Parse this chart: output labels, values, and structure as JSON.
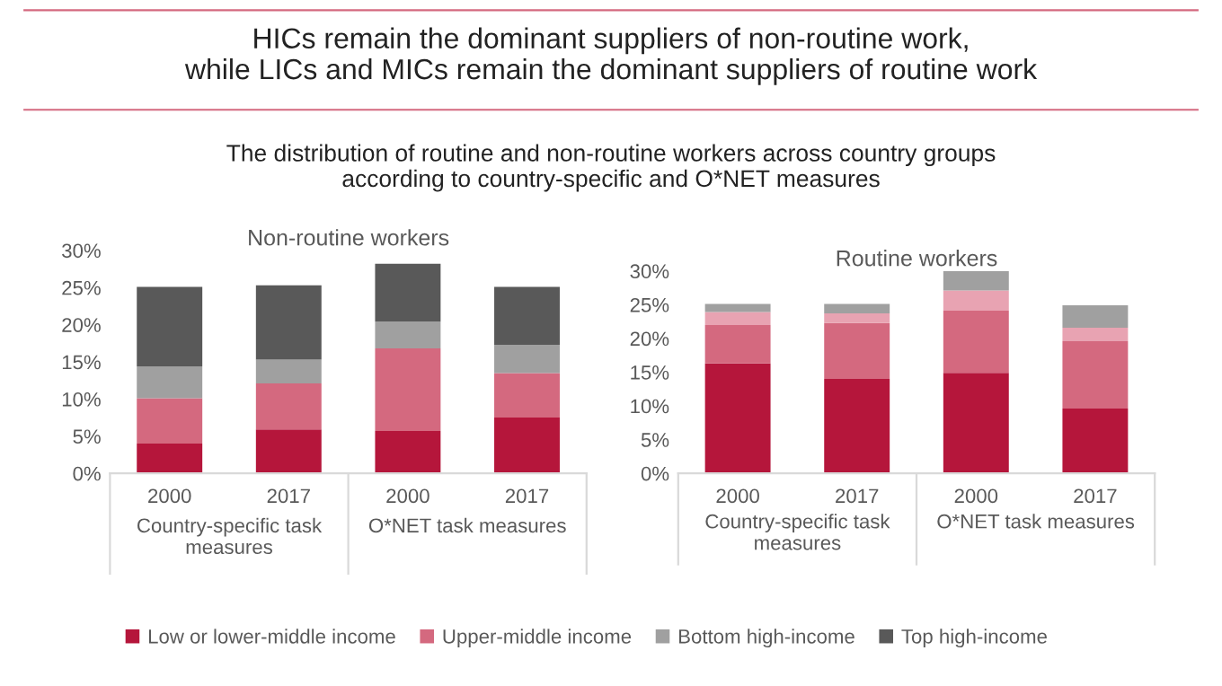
{
  "chart_data": [
    {
      "type": "bar",
      "stacked": true,
      "title": "Non-routine workers",
      "categories": [
        "2000",
        "2017",
        "2000",
        "2017"
      ],
      "ylim": [
        0,
        30
      ],
      "yticks": [
        {
          "value": 0,
          "label": "0%"
        },
        {
          "value": 5,
          "label": "5%"
        },
        {
          "value": 10,
          "label": "10%"
        },
        {
          "value": 15,
          "label": "15%"
        },
        {
          "value": 20,
          "label": "20%"
        },
        {
          "value": 25,
          "label": "25%"
        },
        {
          "value": 30,
          "label": "30%"
        }
      ],
      "grid": false,
      "legend": "bottom",
      "annotations": [
        "HICs remain the dominant suppliers of non-routine work,\nwhile LICs and MICs remain the dominant suppliers of routine work",
        "The distribution of routine and non-routine workers across country groups\naccording to country-specific and O*NET measures",
        "Country-specific task\nmeasures",
        "O*NET task measures"
      ],
      "series": [
        {
          "name": "Low or lower-middle income",
          "color": "#b5163b",
          "values": [
            4.0,
            5.9,
            5.7,
            7.5
          ]
        },
        {
          "name": "Upper-middle income",
          "color": "#d4697f",
          "values": [
            6.1,
            6.2,
            11.1,
            6.0
          ]
        },
        {
          "name": "Bottom high-income",
          "color": "#a0a0a0",
          "values": [
            4.3,
            3.2,
            3.6,
            3.8
          ]
        },
        {
          "name": "Top high-income",
          "color": "#595959",
          "values": [
            10.7,
            10.0,
            7.8,
            7.8
          ]
        }
      ]
    },
    {
      "type": "bar",
      "stacked": true,
      "title": "Routine workers",
      "categories": [
        "2000",
        "2017",
        "2000",
        "2017"
      ],
      "ylim": [
        0,
        30
      ],
      "yticks": [
        {
          "value": 0,
          "label": "0%"
        },
        {
          "value": 5,
          "label": "5%"
        },
        {
          "value": 10,
          "label": "10%"
        },
        {
          "value": 15,
          "label": "15%"
        },
        {
          "value": 20,
          "label": "20%"
        },
        {
          "value": 25,
          "label": "25%"
        },
        {
          "value": 30,
          "label": "30%"
        }
      ],
      "grid": false,
      "annotations": [
        "Country-specific task\nmeasures",
        "O*NET task measures"
      ],
      "series": [
        {
          "color": "#b5163b",
          "values": [
            16.3,
            14.0,
            14.9,
            9.6
          ]
        },
        {
          "color": "#d4697f",
          "values": [
            5.7,
            8.3,
            9.2,
            10.0
          ]
        },
        {
          "color": "#e8a3b2",
          "values": [
            1.9,
            1.4,
            3.0,
            2.0
          ]
        },
        {
          "color": "#a0a0a0",
          "values": [
            1.2,
            1.4,
            2.9,
            3.3
          ]
        }
      ]
    }
  ]
}
